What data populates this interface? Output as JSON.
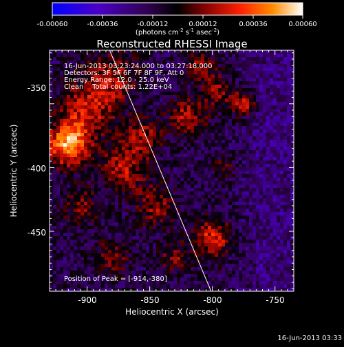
{
  "colorbar": {
    "tick_labels": [
      "-0.00060",
      "-0.00036",
      "-0.00012",
      "0.00012",
      "0.00036",
      "0.00060"
    ],
    "unit_label": "(photons cm",
    "unit_exp1": "-2",
    "unit_mid": " s",
    "unit_exp2": "-1",
    "unit_end": " asec",
    "unit_exp3": "-2",
    "unit_close": ")",
    "colors": [
      "#0000ff",
      "#4a00c8",
      "#300050",
      "#000000",
      "#7a0000",
      "#ff2000",
      "#ff8c00",
      "#ffffff"
    ]
  },
  "plot": {
    "title": "Reconstructed RHESSI Image",
    "info_lines": [
      "16-Jun-2013 03:23:24.000 to 03:27:18.000",
      "Detectors: 3F 5F 6F 7F 8F 9F, Att 0",
      "Energy Range: 12.0 - 25.0 keV",
      "Clean    Total counts: 1.22E+04"
    ],
    "peak_label": "Position of Peak = [-914,-380]",
    "x_axis_label": "Heliocentric X (arcsec)",
    "y_axis_label": "Heliocentric Y (arcsec)",
    "x_ticks": [
      "-900",
      "-850",
      "-800",
      "-750"
    ],
    "y_ticks": [
      "-350",
      "-400",
      "-450"
    ],
    "x_range": [
      -930,
      -735
    ],
    "y_range": [
      -497,
      -308
    ],
    "limb_line": {
      "x_start": -882,
      "y_start": -308,
      "x_end": -801,
      "y_end": -497
    }
  },
  "footer": {
    "timestamp": "16-Jun-2013 03:33"
  }
}
